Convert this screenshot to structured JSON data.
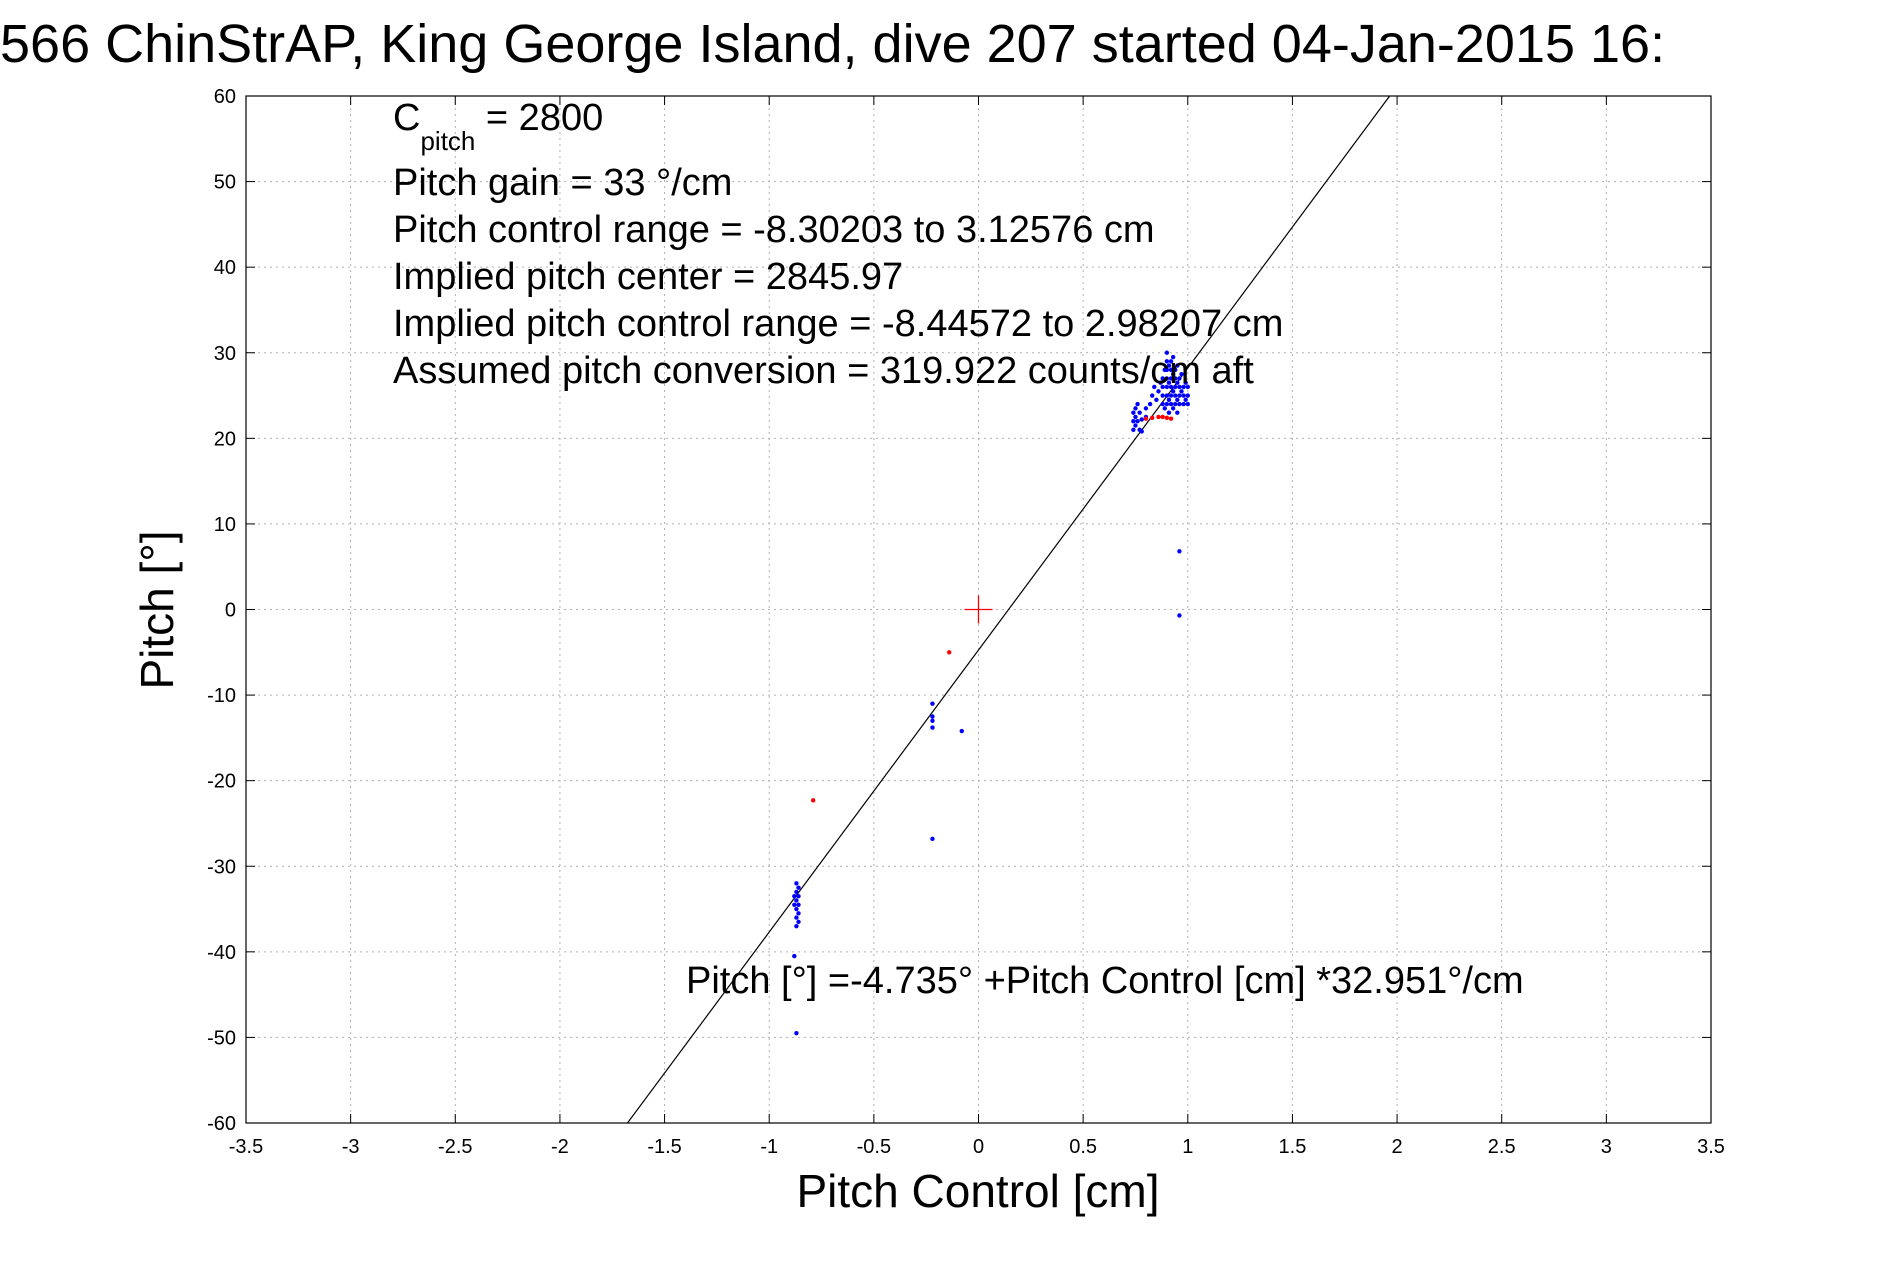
{
  "chart_data": {
    "type": "scatter",
    "title": "566 ChinStrAP, King George Island, dive 207 started 04-Jan-2015 16:",
    "xlabel": "Pitch Control [cm]",
    "ylabel": "Pitch [°]",
    "xlim": [
      -3.5,
      3.5
    ],
    "ylim": [
      -60,
      60
    ],
    "xticks": [
      -3.5,
      -3,
      -2.5,
      -2,
      -1.5,
      -1,
      -0.5,
      0,
      0.5,
      1,
      1.5,
      2,
      2.5,
      3,
      3.5
    ],
    "xtick_labels": [
      "-3.5",
      "-3",
      "-2.5",
      "-2",
      "-1.5",
      "-1",
      "-0.5",
      "0",
      "0.5",
      "1",
      "1.5",
      "2",
      "2.5",
      "3",
      "3.5"
    ],
    "yticks": [
      -60,
      -50,
      -40,
      -30,
      -20,
      -10,
      0,
      10,
      20,
      30,
      40,
      50,
      60
    ],
    "ytick_labels": [
      "-60",
      "-50",
      "-40",
      "-30",
      "-20",
      "-10",
      "0",
      "10",
      "20",
      "30",
      "40",
      "50",
      "60"
    ],
    "grid": true,
    "colors": {
      "series_blue": "#0000ff",
      "series_red": "#ff0000",
      "fit_line": "#000000",
      "center_marker": "#ff0000",
      "grid": "#b0b0b0"
    },
    "annotations": {
      "c_pitch_symbol": "C",
      "c_pitch_subscript": "pitch",
      "c_pitch_value": " = 2800",
      "lines": [
        "Pitch gain = 33 °/cm",
        "Pitch control range = -8.30203 to 3.12576 cm",
        "Implied pitch center = 2845.97",
        "Implied pitch control range = -8.44572 to 2.98207 cm",
        "Assumed pitch conversion = 319.922 counts/cm aft"
      ],
      "fit_equation": "Pitch [°] =-4.735° +Pitch Control [cm] *32.951°/cm"
    },
    "fit_line": {
      "intercept": -4.735,
      "slope": 32.951
    },
    "center_marker": {
      "x": 0,
      "y": 0
    },
    "series": [
      {
        "color": "blue",
        "points": [
          [
            0.74,
            21
          ],
          [
            0.74,
            22
          ],
          [
            0.74,
            23
          ],
          [
            0.75,
            21.5
          ],
          [
            0.75,
            22.5
          ],
          [
            0.75,
            23.5
          ],
          [
            0.76,
            24
          ],
          [
            0.76,
            22
          ],
          [
            0.77,
            21
          ],
          [
            0.77,
            23
          ],
          [
            0.78,
            20.8
          ],
          [
            0.78,
            22.2
          ],
          [
            0.8,
            22.5
          ],
          [
            0.8,
            23.5
          ],
          [
            0.82,
            24
          ],
          [
            0.83,
            25
          ],
          [
            0.84,
            26
          ],
          [
            0.85,
            24.5
          ],
          [
            0.86,
            25.5
          ],
          [
            0.87,
            26.5
          ],
          [
            0.88,
            24
          ],
          [
            0.88,
            25
          ],
          [
            0.88,
            26
          ],
          [
            0.88,
            27
          ],
          [
            0.89,
            23.5
          ],
          [
            0.89,
            28
          ],
          [
            0.9,
            24
          ],
          [
            0.9,
            25
          ],
          [
            0.9,
            26
          ],
          [
            0.9,
            27
          ],
          [
            0.9,
            28
          ],
          [
            0.9,
            29
          ],
          [
            0.9,
            30
          ],
          [
            0.91,
            23
          ],
          [
            0.91,
            24.5
          ],
          [
            0.91,
            26.5
          ],
          [
            0.91,
            28.5
          ],
          [
            0.92,
            24
          ],
          [
            0.92,
            25
          ],
          [
            0.92,
            26
          ],
          [
            0.92,
            27
          ],
          [
            0.92,
            28
          ],
          [
            0.92,
            29
          ],
          [
            0.93,
            23.5
          ],
          [
            0.93,
            25.5
          ],
          [
            0.93,
            27.5
          ],
          [
            0.93,
            29.5
          ],
          [
            0.94,
            24
          ],
          [
            0.94,
            25
          ],
          [
            0.94,
            26
          ],
          [
            0.94,
            27
          ],
          [
            0.94,
            28
          ],
          [
            0.95,
            23
          ],
          [
            0.95,
            24.5
          ],
          [
            0.95,
            26.5
          ],
          [
            0.95,
            28.5
          ],
          [
            0.96,
            24
          ],
          [
            0.96,
            25
          ],
          [
            0.96,
            26
          ],
          [
            0.96,
            27
          ],
          [
            0.97,
            25.5
          ],
          [
            0.97,
            27.5
          ],
          [
            0.98,
            24
          ],
          [
            0.98,
            25
          ],
          [
            0.98,
            26
          ],
          [
            0.99,
            24.5
          ],
          [
            0.99,
            26.5
          ],
          [
            1.0,
            24
          ],
          [
            1.0,
            25
          ],
          [
            1.0,
            26
          ],
          [
            0.96,
            6.8
          ],
          [
            0.96,
            -0.7
          ],
          [
            -0.22,
            -11
          ],
          [
            -0.22,
            -12.5
          ],
          [
            -0.22,
            -13
          ],
          [
            -0.22,
            -13.8
          ],
          [
            -0.08,
            -14.2
          ],
          [
            -0.22,
            -26.8
          ],
          [
            -0.88,
            -33.5
          ],
          [
            -0.88,
            -34.5
          ],
          [
            -0.87,
            -32
          ],
          [
            -0.87,
            -33
          ],
          [
            -0.87,
            -34
          ],
          [
            -0.87,
            -35
          ],
          [
            -0.87,
            -36
          ],
          [
            -0.87,
            -37
          ],
          [
            -0.86,
            -32.5
          ],
          [
            -0.86,
            -33.5
          ],
          [
            -0.86,
            -34.5
          ],
          [
            -0.86,
            -35.5
          ],
          [
            -0.86,
            -36.5
          ],
          [
            -0.88,
            -40.5
          ],
          [
            -0.87,
            -49.5
          ]
        ]
      },
      {
        "color": "red",
        "points": [
          [
            0.8,
            22.3
          ],
          [
            0.83,
            22.4
          ],
          [
            0.86,
            22.5
          ],
          [
            0.88,
            22.5
          ],
          [
            0.9,
            22.4
          ],
          [
            0.92,
            22.3
          ],
          [
            -0.14,
            -5
          ],
          [
            -0.79,
            -22.3
          ]
        ]
      }
    ]
  }
}
